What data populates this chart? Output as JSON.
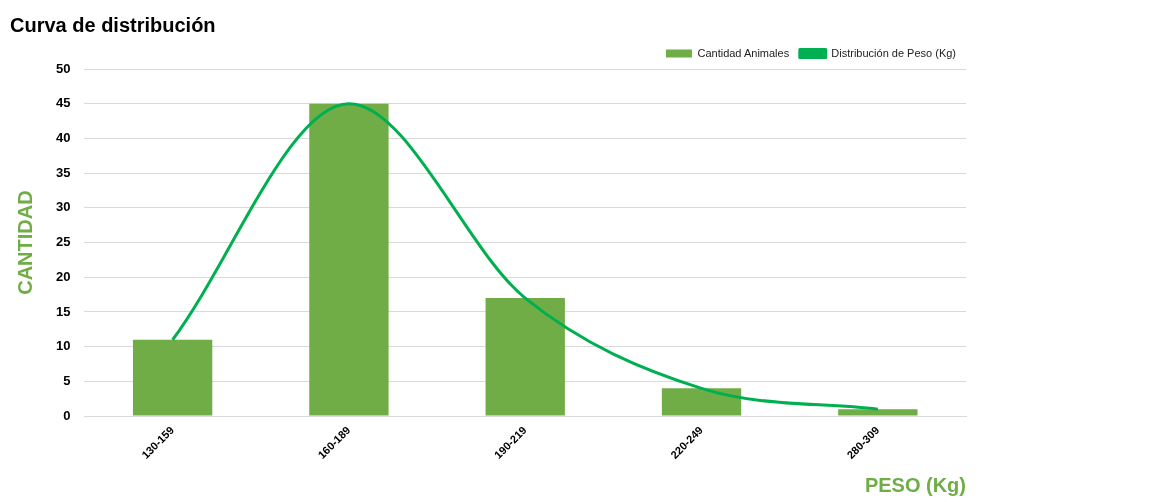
{
  "chart_data": {
    "type": "bar",
    "title": "Curva de distribución",
    "xlabel": "PESO (Kg)",
    "ylabel": "CANTIDAD",
    "categories": [
      "130-159",
      "160-189",
      "190-219",
      "220-249",
      "280-309"
    ],
    "series": [
      {
        "name": "Cantidad Animales",
        "color": "#70ad47",
        "values": [
          11,
          45,
          17,
          4,
          1
        ]
      },
      {
        "name": "Distribución de Peso (Kg)",
        "type": "line",
        "color": "#00b050",
        "values": [
          11,
          45,
          17,
          4,
          1
        ]
      }
    ],
    "ylim": [
      0,
      50
    ],
    "yticks": [
      0,
      5,
      10,
      15,
      20,
      25,
      30,
      35,
      40,
      45,
      50
    ],
    "grid": "y",
    "legend": "top right",
    "marker": "none"
  }
}
